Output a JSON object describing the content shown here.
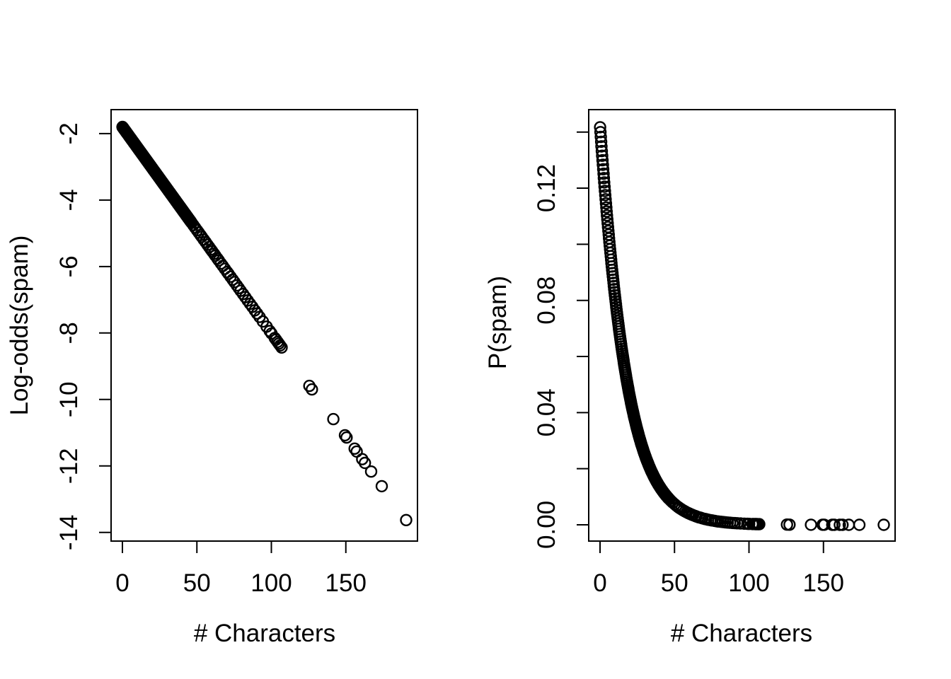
{
  "figure": {
    "background": "#ffffff",
    "stroke_color": "#000000"
  },
  "chart_data": [
    {
      "type": "scatter",
      "panel": "left",
      "title": "",
      "xlabel": "# Characters",
      "ylabel": "Log-odds(spam)",
      "marker": "open-circle",
      "grid": "off",
      "legend": "none",
      "xlim": [
        -7.6,
        198.1
      ],
      "ylim": [
        -14.26,
        -1.28
      ],
      "x_tick_values": [
        0,
        50,
        100,
        150
      ],
      "x_tick_labels": [
        "0",
        "50",
        "100",
        "150"
      ],
      "y_tick_values": [
        -14,
        -12,
        -10,
        -8,
        -6,
        -4,
        -2
      ],
      "y_tick_labels": [
        "-14",
        "-12",
        "-10",
        "-8",
        "-6",
        "-4",
        "-2"
      ],
      "y_transform": "log_odds",
      "y_of_x": "intercept + slope * x",
      "y_at_x0": -1.8,
      "y_at_xmax": -13.6
    },
    {
      "type": "scatter",
      "panel": "right",
      "title": "",
      "xlabel": "# Characters",
      "ylabel": "P(spam)",
      "marker": "open-circle",
      "grid": "off",
      "legend": "none",
      "xlim": [
        -7.6,
        198.1
      ],
      "ylim": [
        -0.0058,
        0.148
      ],
      "x_tick_values": [
        0,
        50,
        100,
        150
      ],
      "x_tick_labels": [
        "0",
        "50",
        "100",
        "150"
      ],
      "y_tick_values": [
        0,
        0.02,
        0.04,
        0.06,
        0.08,
        0.1,
        0.12,
        0.14
      ],
      "y_tick_labels": [
        "0.00",
        "",
        "0.04",
        "",
        "0.08",
        "",
        "0.12",
        ""
      ],
      "y_transform": "probability",
      "y_of_x": "exp(intercept + slope*x) / (1 + exp(intercept + slope*x))",
      "y_at_x0": 0.142,
      "y_at_xmax": 0.0
    }
  ],
  "model": {
    "intercept": -1.798,
    "slope": -0.0621
  },
  "x_points": {
    "dense_range": {
      "from": 0.05,
      "to": 46.0,
      "count": 200
    },
    "mid": [
      46.5,
      47.6,
      48.8,
      50.1,
      51.2,
      52.4,
      53.3,
      54.6,
      55.8,
      57.1,
      58.2,
      59.4,
      60.3,
      61.5,
      62.4,
      63.8,
      64.7,
      66.2,
      67.4,
      68.8,
      70.3,
      71.2,
      72.6,
      74.0,
      75.2,
      76.8,
      78.1,
      79.4,
      81.0,
      82.5,
      84.1,
      85.7,
      87.2,
      88.9,
      90.4,
      92.1,
      94.3,
      96.8,
      98.9,
      100.1,
      102.3,
      103.1,
      104.2,
      105.0,
      105.9,
      106.9
    ],
    "sparse": [
      125.5,
      127.2,
      141.6,
      149.4,
      150.5,
      155.9,
      157.3,
      161.0,
      162.8,
      167.0,
      174.1,
      190.5
    ]
  }
}
